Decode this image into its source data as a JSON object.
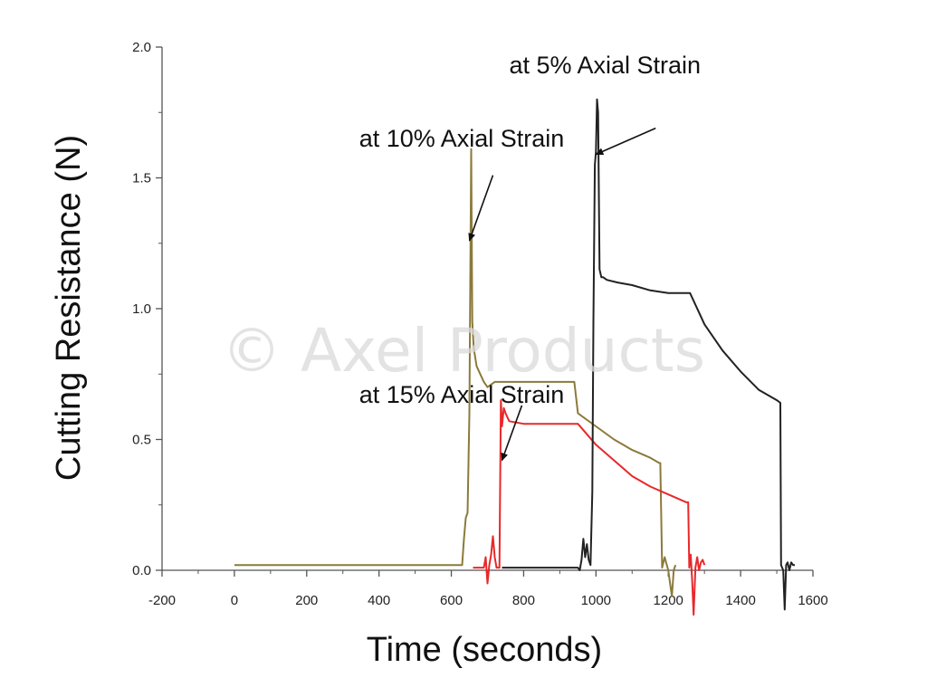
{
  "chart_data": {
    "type": "line",
    "title": "",
    "xlabel": "Time (seconds)",
    "ylabel": "Cutting Resistance (N)",
    "xlim": [
      -200,
      1600
    ],
    "ylim": [
      0,
      2.0
    ],
    "xticks": [
      -200,
      0,
      200,
      400,
      600,
      800,
      1000,
      1200,
      1400,
      1600
    ],
    "yticks": [
      "0.0",
      "0.5",
      "1.0",
      "1.5",
      "2.0"
    ],
    "yticks_values": [
      0,
      0.5,
      1.0,
      1.5,
      2.0
    ],
    "grid": false,
    "legend": "none",
    "watermark": "© Axel Products",
    "series": [
      {
        "color": "#8b7a3a",
        "x": [
          0,
          200,
          400,
          600,
          630,
          635,
          640,
          645,
          650,
          655,
          658,
          662,
          670,
          680,
          690,
          700,
          710,
          720,
          730,
          760,
          800,
          850,
          900,
          940,
          950,
          1000,
          1050,
          1100,
          1150,
          1175,
          1178,
          1183,
          1190,
          1200,
          1210,
          1215,
          1220
        ],
        "y": [
          0.02,
          0.02,
          0.02,
          0.02,
          0.02,
          0.12,
          0.2,
          0.22,
          0.6,
          1.61,
          0.95,
          0.85,
          0.78,
          0.75,
          0.72,
          0.7,
          0.71,
          0.72,
          0.72,
          0.72,
          0.72,
          0.72,
          0.72,
          0.72,
          0.6,
          0.55,
          0.5,
          0.46,
          0.43,
          0.41,
          0.41,
          0.01,
          0.05,
          0.0,
          -0.1,
          0.0,
          0.02
        ]
      },
      {
        "color": "#e8282a",
        "x": [
          660,
          690,
          695,
          700,
          705,
          710,
          715,
          720,
          725,
          730,
          733,
          737,
          740,
          745,
          750,
          760,
          800,
          850,
          900,
          950,
          1000,
          1050,
          1100,
          1150,
          1200,
          1250,
          1255,
          1258,
          1262,
          1266,
          1270,
          1275,
          1280,
          1285,
          1290,
          1295,
          1300
        ],
        "y": [
          0.01,
          0.01,
          0.05,
          -0.05,
          0.02,
          0.06,
          0.13,
          0.05,
          0.01,
          0.01,
          0.01,
          0.65,
          0.55,
          0.62,
          0.6,
          0.57,
          0.56,
          0.56,
          0.56,
          0.56,
          0.48,
          0.42,
          0.36,
          0.32,
          0.29,
          0.26,
          0.26,
          0.01,
          0.06,
          -0.04,
          -0.17,
          0.01,
          0.05,
          0.0,
          0.03,
          0.04,
          0.02
        ]
      },
      {
        "color": "#222222",
        "x": [
          740,
          800,
          900,
          950,
          955,
          960,
          965,
          970,
          975,
          980,
          985,
          990,
          993,
          997,
          1000,
          1003,
          1006,
          1010,
          1015,
          1020,
          1030,
          1060,
          1100,
          1150,
          1200,
          1250,
          1260,
          1300,
          1350,
          1400,
          1450,
          1500,
          1510,
          1512,
          1518,
          1522,
          1526,
          1530,
          1535,
          1540,
          1545,
          1550
        ],
        "y": [
          0.01,
          0.01,
          0.01,
          0.01,
          0.0,
          0.04,
          0.12,
          0.05,
          0.1,
          0.04,
          0.02,
          0.3,
          0.95,
          1.55,
          1.6,
          1.8,
          1.75,
          1.15,
          1.12,
          1.12,
          1.11,
          1.1,
          1.09,
          1.07,
          1.06,
          1.06,
          1.06,
          0.94,
          0.84,
          0.76,
          0.69,
          0.65,
          0.64,
          0.02,
          0.0,
          -0.15,
          0.02,
          0.03,
          0.0,
          0.03,
          0.02,
          0.02
        ]
      }
    ],
    "annotations": [
      {
        "text": "at 5% Axial Strain",
        "tx": 760,
        "ty": 1.9,
        "ax1": 1165,
        "ay1": 1.69,
        "ax2": 1000,
        "ay2": 1.59
      },
      {
        "text": "at 10% Axial Strain",
        "tx": 345,
        "ty": 1.62,
        "ax1": 715,
        "ay1": 1.51,
        "ax2": 650,
        "ay2": 1.26
      },
      {
        "text": "at 15% Axial Strain",
        "tx": 345,
        "ty": 0.64,
        "ax1": 795,
        "ay1": 0.63,
        "ax2": 740,
        "ay2": 0.42
      }
    ]
  }
}
